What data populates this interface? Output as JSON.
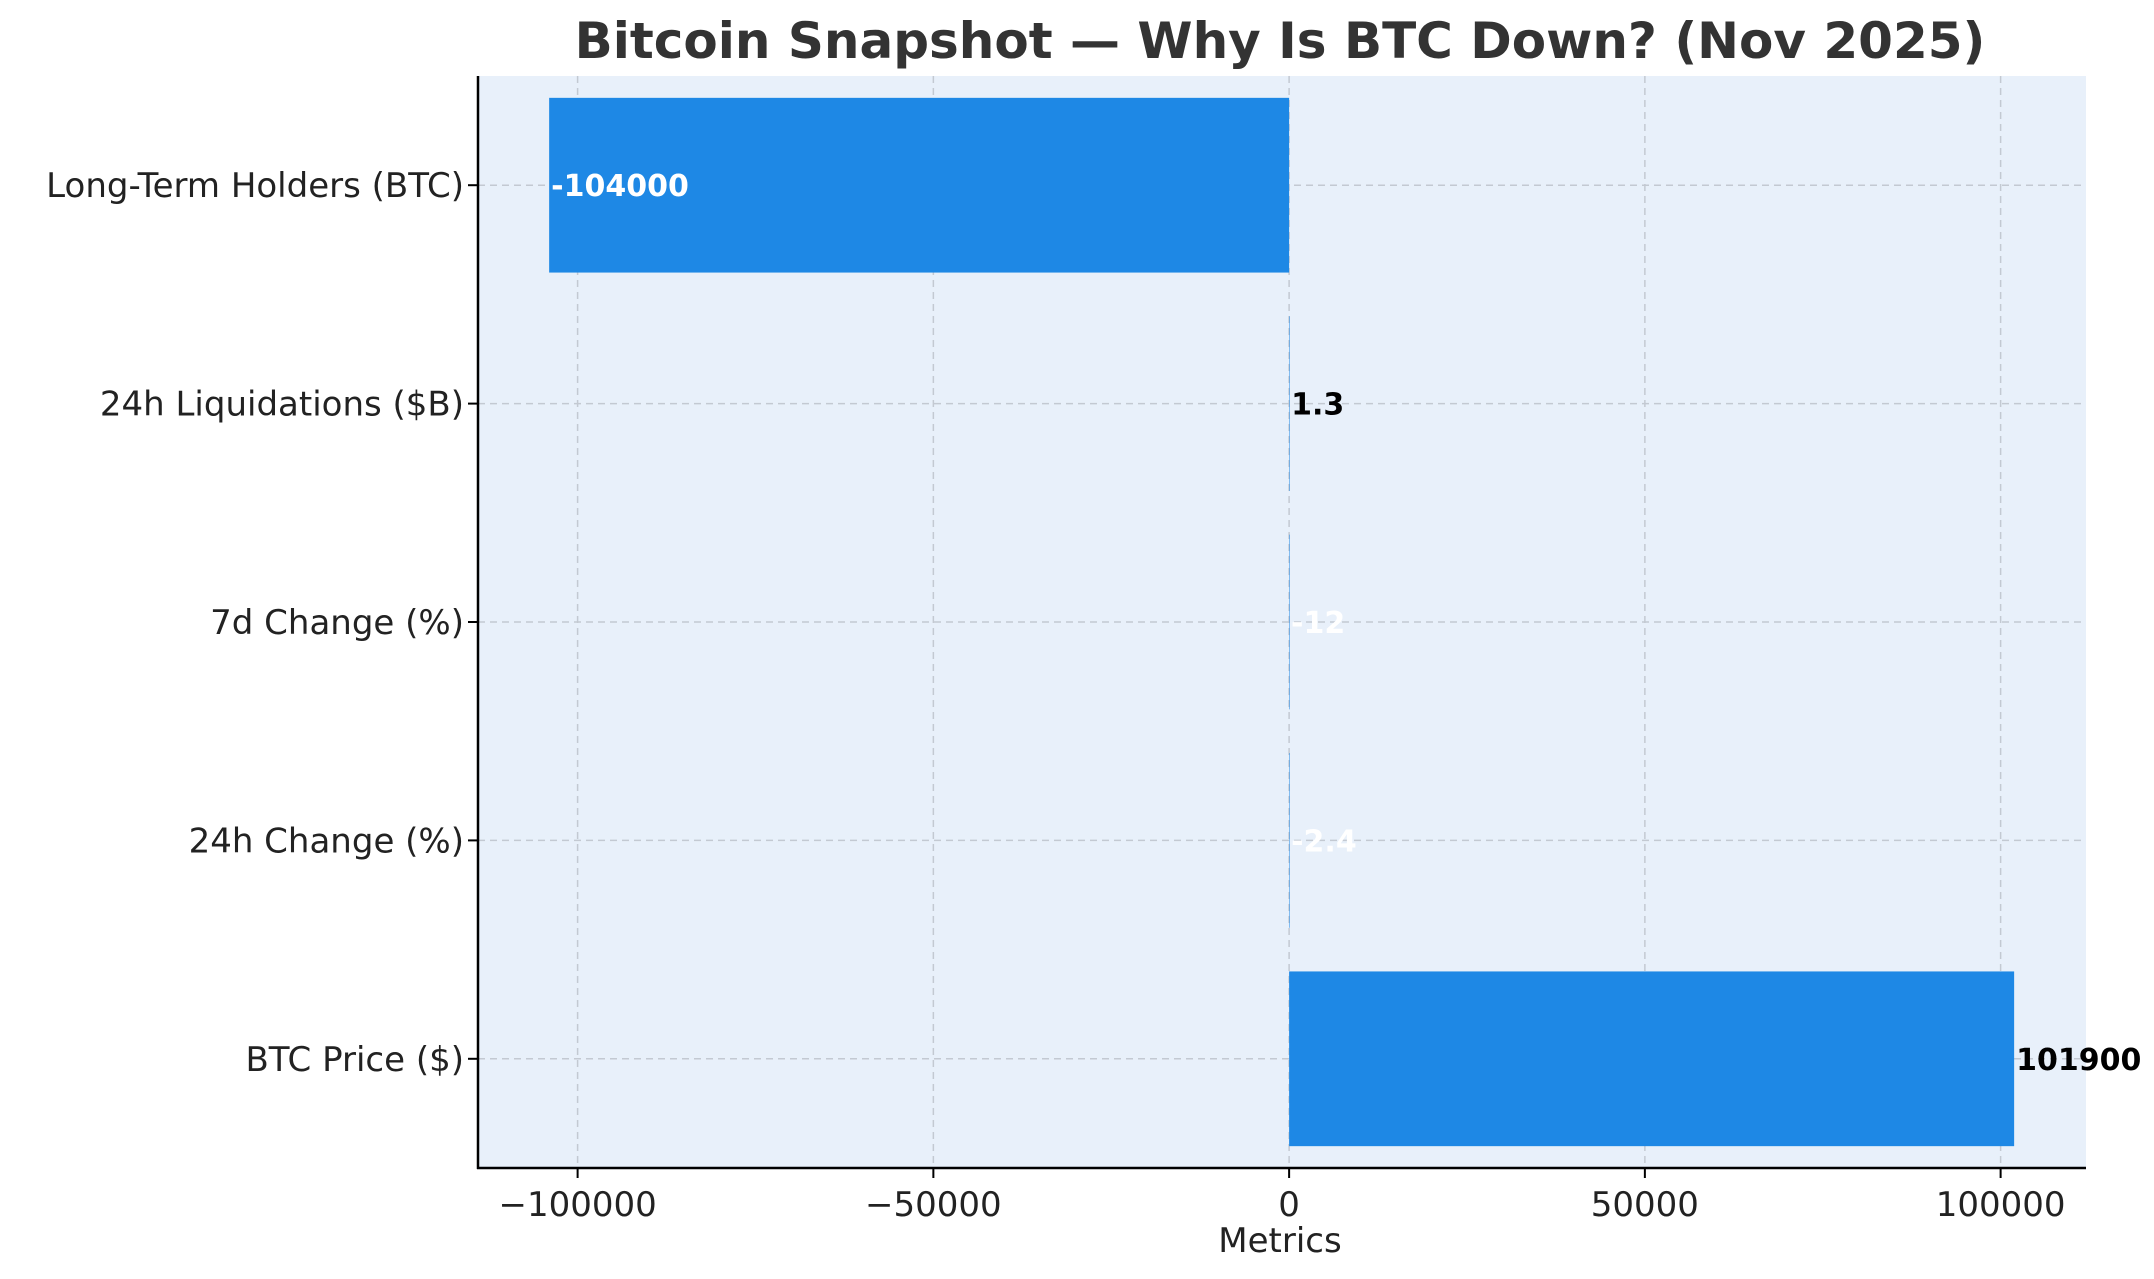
{
  "chart_data": {
    "type": "bar",
    "orientation": "horizontal",
    "title": "Bitcoin Snapshot — Why Is BTC Down? (Nov 2025)",
    "xlabel": "Metrics",
    "ylabel": "",
    "categories": [
      "BTC Price ($)",
      "24h Change (%)",
      "7d Change (%)",
      "24h Liquidations ($B)",
      "Long-Term Holders (BTC)"
    ],
    "values": [
      101900,
      -2.4,
      -12,
      1.3,
      -104000
    ],
    "data_labels": [
      "101900",
      "-2.4",
      "-12",
      "1.3",
      "-104000"
    ],
    "xlim": [
      -114000,
      112000
    ],
    "xticks": [
      -100000,
      -50000,
      0,
      50000,
      100000
    ],
    "xtick_labels": [
      "−100000",
      "−50000",
      "0",
      "50000",
      "100000"
    ],
    "grid": true,
    "legend": "none",
    "colors": {
      "bar": "#1e88e5",
      "plot_background": "#e8f0fa",
      "grid": "#c3c9d2",
      "axis": "#000000",
      "label_on_positive": "#000000",
      "label_on_negative": "#ffffff"
    }
  }
}
